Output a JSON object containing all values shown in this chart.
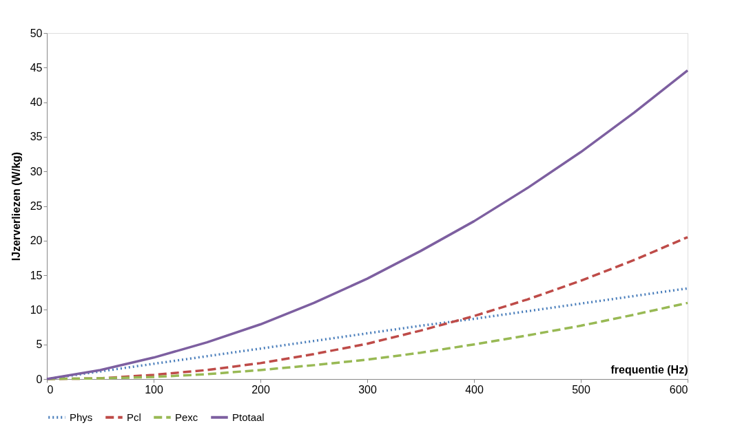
{
  "chart_data": {
    "type": "line",
    "xlabel": "frequentie (Hz)",
    "ylabel": "IJzerverliezen (W/kg)",
    "x": [
      0,
      50,
      100,
      150,
      200,
      250,
      300,
      350,
      400,
      450,
      500,
      550,
      600
    ],
    "series": [
      {
        "name": "Phys",
        "color": "#4a7ebb",
        "line_style": "dotted",
        "values": [
          0,
          1.1,
          2.2,
          3.3,
          4.4,
          5.5,
          6.6,
          7.7,
          8.7,
          9.8,
          10.9,
          12,
          13.1
        ]
      },
      {
        "name": "Pcl",
        "color": "#be4b48",
        "line_style": "dashed",
        "values": [
          0,
          0.1,
          0.6,
          1.3,
          2.3,
          3.6,
          5.1,
          7,
          9.1,
          11.5,
          14.2,
          17.2,
          20.5
        ]
      },
      {
        "name": "Pexc",
        "color": "#98b954",
        "line_style": "dashed",
        "values": [
          0,
          0.1,
          0.3,
          0.7,
          1.3,
          2,
          2.8,
          3.8,
          5,
          6.3,
          7.7,
          9.3,
          11
        ]
      },
      {
        "name": "Ptotaal",
        "color": "#7d5fa0",
        "line_style": "solid",
        "values": [
          0,
          1.3,
          3.1,
          5.3,
          7.9,
          11,
          14.5,
          18.5,
          22.8,
          27.6,
          32.8,
          38.5,
          44.6
        ]
      }
    ],
    "xlim": [
      0,
      600
    ],
    "xticks": [
      0,
      100,
      200,
      300,
      400,
      500,
      600
    ],
    "ylim": [
      0,
      50
    ],
    "yticks": [
      0,
      5,
      10,
      15,
      20,
      25,
      30,
      35,
      40,
      45,
      50
    ],
    "grid": false,
    "legend": "bottom",
    "marker": "none"
  }
}
